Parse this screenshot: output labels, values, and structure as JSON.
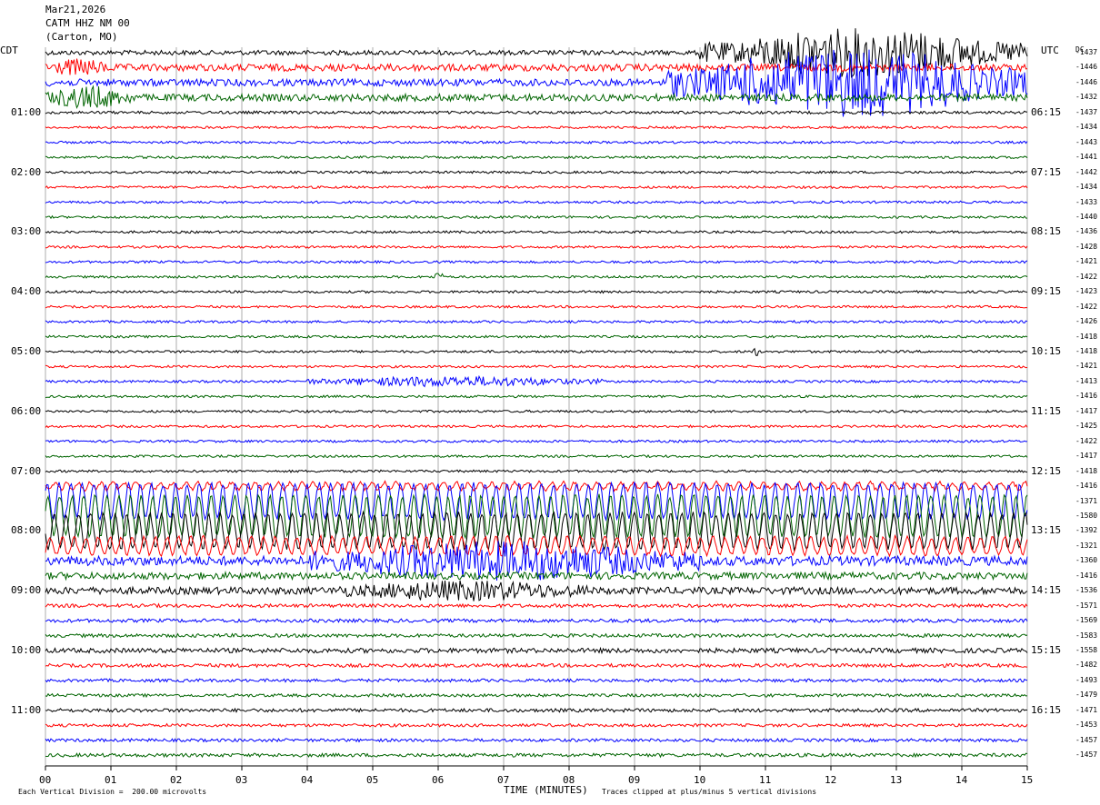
{
  "header": {
    "date": "Mar21,2026",
    "station": "CATM HHZ NM 00",
    "location": "(Carton, MO)"
  },
  "left_axis_label": "CDT",
  "right_axis_label": "UTC",
  "dc_label": "DC",
  "footer": {
    "scale_note": "Each Vertical Division =  200.00 microvolts",
    "clip_note": "Traces clipped at plus/minus 5 vertical divisions",
    "xlabel": "TIME (MINUTES)"
  },
  "chart_data": {
    "type": "line",
    "title": "CATM HHZ NM 00",
    "xlabel": "TIME (MINUTES)",
    "x_ticks": [
      "00",
      "01",
      "02",
      "03",
      "04",
      "05",
      "06",
      "07",
      "08",
      "09",
      "10",
      "11",
      "12",
      "13",
      "14",
      "15"
    ],
    "xlim": [
      0,
      15
    ],
    "grid": true,
    "trace_colors": [
      "#000000",
      "#ff0000",
      "#0000ff",
      "#006400"
    ],
    "left_hour_labels": [
      "01:00",
      "02:00",
      "03:00",
      "04:00",
      "05:00",
      "06:00",
      "07:00",
      "08:00",
      "09:00",
      "10:00",
      "11:00"
    ],
    "right_hour_labels": [
      "06:15",
      "07:15",
      "08:15",
      "09:15",
      "10:15",
      "11:15",
      "12:15",
      "13:15",
      "14:15",
      "15:15",
      "16:15"
    ],
    "hour_label_rows": [
      4,
      8,
      12,
      16,
      20,
      24,
      28,
      32,
      36,
      40,
      44
    ],
    "dc_offsets": [
      -1437,
      -1446,
      -1446,
      -1432,
      -1437,
      -1434,
      -1443,
      -1441,
      -1442,
      -1434,
      -1433,
      -1440,
      -1436,
      -1428,
      -1421,
      -1422,
      -1423,
      -1422,
      -1426,
      -1418,
      -1418,
      -1421,
      -1413,
      -1416,
      -1417,
      -1425,
      -1422,
      -1417,
      -1418,
      -1416,
      -1371,
      -1580,
      -1392,
      -1321,
      -1360,
      -1416,
      -1536,
      -1571,
      -1569,
      -1583,
      -1558,
      -1482,
      -1493,
      -1479,
      -1471,
      -1453,
      -1457,
      -1457
    ],
    "trace_amplitude": [
      2,
      3,
      3,
      3,
      1.2,
      1,
      1,
      1,
      1,
      1,
      1,
      1,
      1,
      1,
      1,
      1,
      1,
      1,
      1,
      1,
      1,
      1,
      1,
      1,
      1,
      1,
      1,
      1,
      1,
      1.2,
      6,
      7,
      6,
      3,
      4,
      3,
      3,
      1.5,
      1.5,
      1.5,
      2,
      1.5,
      1.3,
      1.3,
      1.5,
      1.3,
      1.3,
      1.5
    ],
    "events": [
      {
        "row": 0,
        "start": 10.0,
        "end": 15.0,
        "amplitude": 3.2
      },
      {
        "row": 2,
        "start": 9.5,
        "end": 15.0,
        "amplitude": 4.5
      },
      {
        "row": 1,
        "start": 0.0,
        "end": 1.0,
        "amplitude": 0.8
      },
      {
        "row": 3,
        "start": 0.0,
        "end": 1.3,
        "amplitude": 1.2
      },
      {
        "row": 15,
        "start": 5.9,
        "end": 6.1,
        "amplitude": 0.5
      },
      {
        "row": 20,
        "start": 10.8,
        "end": 10.9,
        "amplitude": 0.7
      },
      {
        "row": 22,
        "start": 4.0,
        "end": 8.5,
        "amplitude": 0.6
      },
      {
        "row": 34,
        "start": 4.0,
        "end": 10.0,
        "amplitude": 2.2
      },
      {
        "row": 36,
        "start": 4.5,
        "end": 8.3,
        "amplitude": 1.0
      }
    ]
  }
}
